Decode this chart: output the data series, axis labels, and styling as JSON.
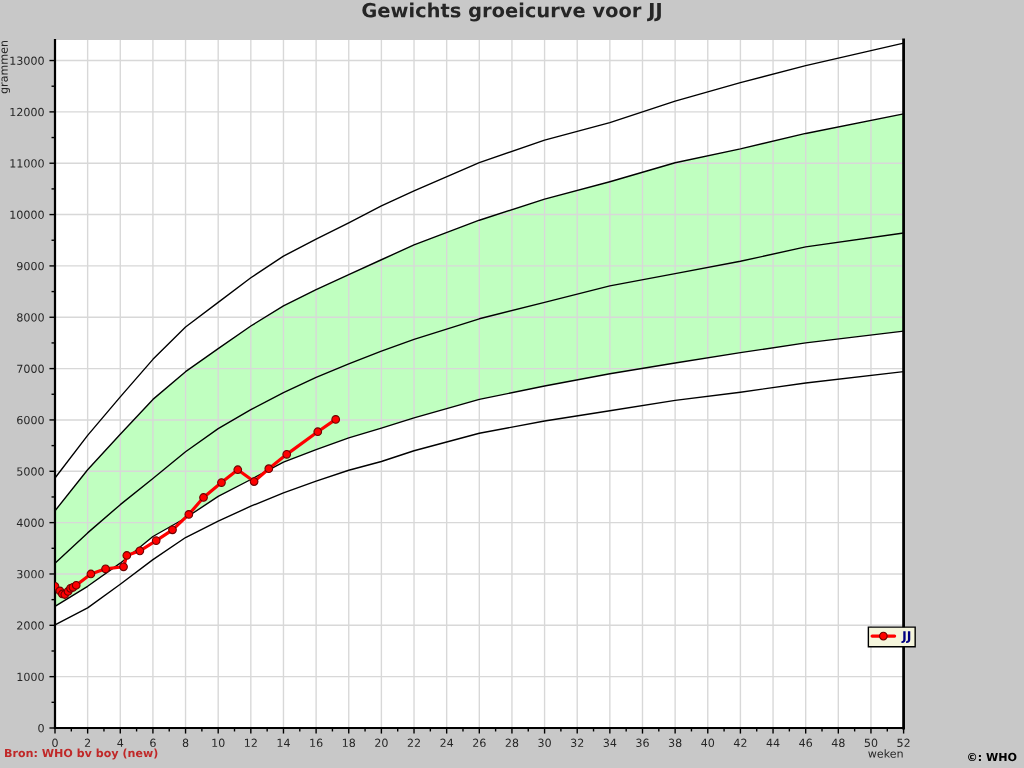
{
  "chart_data": {
    "type": "line",
    "title": "Gewichts groeicurve voor JJ",
    "xlabel": "weken",
    "ylabel": "grammen",
    "annotations": [
      "Bron: WHO bv boy (new)",
      "©: WHO"
    ],
    "xlim": [
      0,
      52
    ],
    "xticks": [
      0,
      {
        "value": 1,
        "label": null
      },
      2,
      {
        "value": 3,
        "label": null
      },
      4,
      {
        "value": 5,
        "label": null
      },
      6,
      {
        "value": 7,
        "label": null
      },
      8,
      {
        "value": 9,
        "label": null
      },
      10,
      {
        "value": 11,
        "label": null
      },
      12,
      {
        "value": 13,
        "label": null
      },
      14,
      {
        "value": 15,
        "label": null
      },
      16,
      {
        "value": 17,
        "label": null
      },
      18,
      {
        "value": 19,
        "label": null
      },
      20,
      {
        "value": 21,
        "label": null
      },
      22,
      {
        "value": 23,
        "label": null
      },
      24,
      {
        "value": 25,
        "label": null
      },
      26,
      {
        "value": 27,
        "label": null
      },
      28,
      {
        "value": 29,
        "label": null
      },
      30,
      {
        "value": 31,
        "label": null
      },
      32,
      {
        "value": 33,
        "label": null
      },
      34,
      {
        "value": 35,
        "label": null
      },
      36,
      {
        "value": 37,
        "label": null
      },
      38,
      {
        "value": 39,
        "label": null
      },
      40,
      {
        "value": 41,
        "label": null
      },
      42,
      {
        "value": 43,
        "label": null
      },
      44,
      {
        "value": 45,
        "label": null
      },
      46,
      {
        "value": 47,
        "label": null
      },
      48,
      {
        "value": 49,
        "label": null
      },
      50,
      {
        "value": 51,
        "label": null
      },
      52
    ],
    "ylim": [
      0,
      13400
    ],
    "yticks": [
      0,
      {
        "value": 500,
        "label": null
      },
      1000,
      {
        "value": 1500,
        "label": null
      },
      2000,
      {
        "value": 2500,
        "label": null
      },
      3000,
      {
        "value": 3500,
        "label": null
      },
      4000,
      {
        "value": 4500,
        "label": null
      },
      5000,
      {
        "value": 5500,
        "label": null
      },
      6000,
      {
        "value": 6500,
        "label": null
      },
      7000,
      {
        "value": 7500,
        "label": null
      },
      8000,
      {
        "value": 8500,
        "label": null
      },
      9000,
      {
        "value": 9500,
        "label": null
      },
      10000,
      {
        "value": 10500,
        "label": null
      },
      11000,
      {
        "value": 11500,
        "label": null
      },
      12000,
      {
        "value": 12500,
        "label": null
      },
      13000
    ],
    "grid": true,
    "legend": "bottom right",
    "series": [
      {
        "color": "#000000",
        "x": [
          0,
          2,
          4,
          6,
          8,
          10,
          12,
          14,
          16,
          18,
          20,
          22,
          26,
          30,
          34,
          38,
          42,
          46,
          52
        ],
        "values": [
          2010,
          2340,
          2800,
          3280,
          3710,
          4030,
          4320,
          4580,
          4810,
          5020,
          5190,
          5400,
          5740,
          5980,
          6180,
          6380,
          6540,
          6720,
          6940
        ]
      },
      {
        "color": "#000000",
        "x": [
          0,
          2,
          4,
          6,
          8,
          10,
          12,
          14,
          16,
          18,
          20,
          22,
          26,
          30,
          34,
          38,
          42,
          46,
          52
        ],
        "values": [
          2370,
          2760,
          3210,
          3730,
          4090,
          4510,
          4840,
          5180,
          5420,
          5650,
          5840,
          6040,
          6400,
          6660,
          6900,
          7110,
          7310,
          7500,
          7730
        ]
      },
      {
        "color": "#000000",
        "x": [
          0,
          2,
          4,
          6,
          8,
          10,
          12,
          14,
          16,
          18,
          20,
          22,
          26,
          30,
          34,
          38,
          42,
          46,
          52
        ],
        "values": [
          3210,
          3800,
          4350,
          4860,
          5380,
          5830,
          6200,
          6530,
          6830,
          7090,
          7340,
          7570,
          7970,
          8290,
          8610,
          8850,
          9090,
          9370,
          9640
        ],
        "lower": [
          2370,
          2760,
          3210,
          3730,
          4090,
          4510,
          4840,
          5180,
          5420,
          5650,
          5840,
          6040,
          6400,
          6660,
          6900,
          7110,
          7310,
          7500,
          7730
        ],
        "upper": [
          4230,
          5030,
          5720,
          6400,
          6940,
          7390,
          7830,
          8220,
          8540,
          8830,
          9120,
          9410,
          9890,
          10300,
          10640,
          11010,
          11280,
          11580,
          11960
        ]
      },
      {
        "color": "#000000",
        "x": [
          0,
          2,
          4,
          6,
          8,
          10,
          12,
          14,
          16,
          18,
          20,
          22,
          26,
          30,
          34,
          38,
          42,
          46,
          52
        ],
        "values": [
          4230,
          5030,
          5720,
          6400,
          6940,
          7390,
          7830,
          8220,
          8540,
          8830,
          9120,
          9410,
          9890,
          10300,
          10640,
          11010,
          11280,
          11580,
          11960
        ]
      },
      {
        "color": "#000000",
        "x": [
          0,
          2,
          4,
          6,
          8,
          10,
          12,
          14,
          16,
          18,
          20,
          22,
          26,
          30,
          34,
          38,
          42,
          46,
          52
        ],
        "values": [
          4870,
          5700,
          6450,
          7180,
          7810,
          8290,
          8770,
          9190,
          9520,
          9840,
          10170,
          10460,
          11010,
          11450,
          11790,
          12210,
          12570,
          12900,
          13340
        ]
      },
      {
        "name": "JJ",
        "color": "#ff0000",
        "marker": "circle",
        "x": [
          0,
          0.3,
          0.45,
          0.6,
          0.8,
          0.95,
          1.1,
          1.3,
          2.2,
          3.1,
          4.2,
          4.4,
          5.2,
          6.2,
          7.2,
          8.2,
          9.1,
          10.2,
          11.2,
          12.2,
          13.1,
          14.2,
          16.1,
          17.2
        ],
        "values": [
          2760,
          2670,
          2610,
          2600,
          2660,
          2720,
          2740,
          2780,
          3000,
          3100,
          3140,
          3360,
          3450,
          3650,
          3860,
          4160,
          4490,
          4780,
          5030,
          4800,
          5050,
          5330,
          5770,
          6010
        ]
      }
    ]
  }
}
